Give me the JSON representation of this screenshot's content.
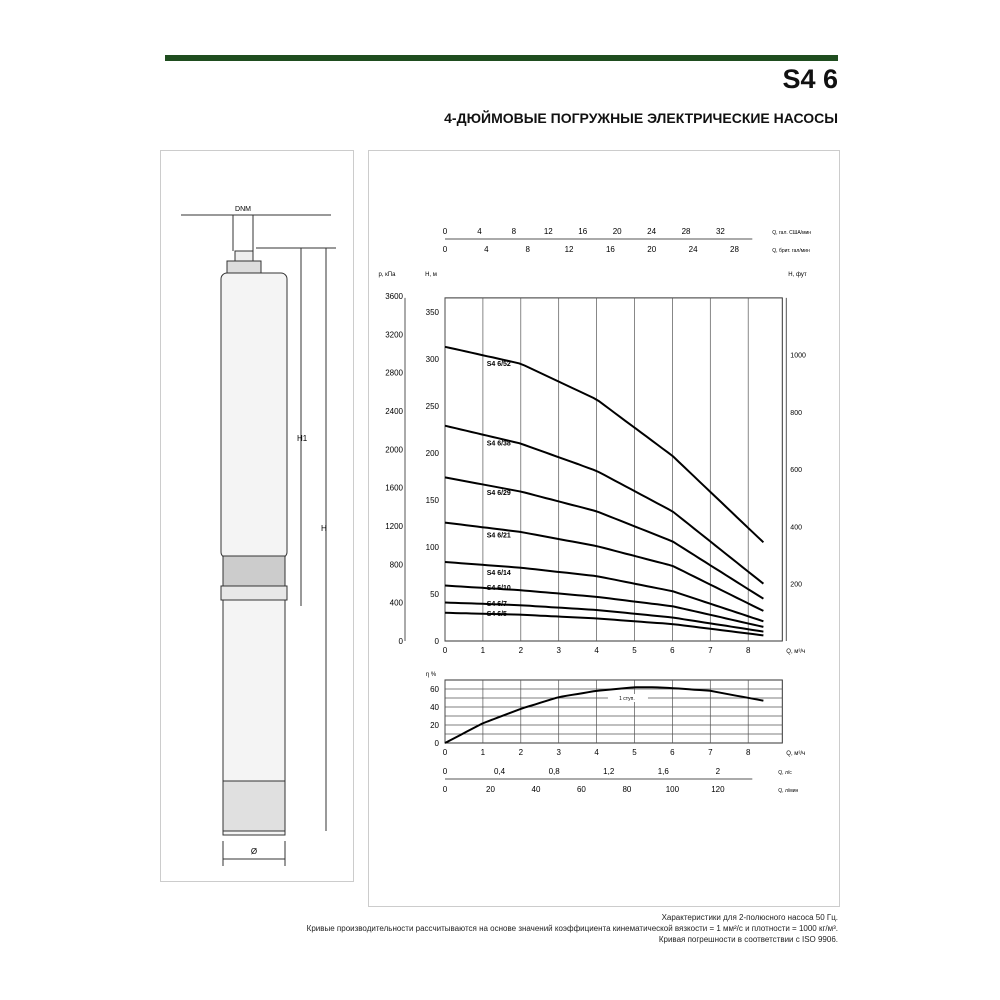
{
  "header": {
    "title": "S4 6",
    "subtitle": "4-ДЮЙМОВЫЕ ПОГРУЖНЫЕ ЭЛЕКТРИЧЕСКИЕ НАСОСЫ",
    "accent_color": "#1f4d1f"
  },
  "drawing": {
    "dnm": "DNM",
    "h1": "H1",
    "h": "H",
    "diameter": "Ø"
  },
  "footer": [
    "Характеристики для 2-полюсного насоса 50 Гц.",
    "Кривые производительности рассчитываются на основе значений коэффициента кинематической вязкости = 1 мм²/с и плотности = 1000 кг/м³.",
    "Кривая погрешности в соответствии с ISO 9906."
  ],
  "chart_data": [
    {
      "type": "line",
      "title": "",
      "xlabel": "Q, м³/ч",
      "ylabel": "H, м",
      "ylabel_kpa": "p, кПа",
      "ylabel_right": "H, фут",
      "top_axis_us": {
        "label": "Q, гал. США/мин",
        "ticks": [
          0,
          4,
          8,
          12,
          16,
          20,
          24,
          28,
          32
        ]
      },
      "top_axis_uk": {
        "label": "Q, брит. гал/мин",
        "ticks": [
          0,
          4,
          8,
          12,
          16,
          20,
          24,
          28
        ]
      },
      "xlim": [
        0,
        8.9
      ],
      "ylim": [
        0,
        365
      ],
      "x_ticks": [
        0,
        1,
        2,
        3,
        4,
        5,
        6,
        7,
        8
      ],
      "y_ticks": [
        0,
        50,
        100,
        150,
        200,
        250,
        300,
        350
      ],
      "kpa_ticks": [
        0,
        400,
        800,
        1200,
        1600,
        2000,
        2400,
        2800,
        3200,
        3600
      ],
      "ft_ticks": [
        200,
        400,
        600,
        800,
        1000
      ],
      "grid": "vertical",
      "series": [
        {
          "name": "S4 6/52",
          "x": [
            0,
            2,
            4,
            6,
            8.4
          ],
          "y": [
            313,
            295,
            257,
            197,
            105
          ]
        },
        {
          "name": "S4 6/38",
          "x": [
            0,
            2,
            4,
            6,
            8.4
          ],
          "y": [
            229,
            210,
            181,
            138,
            61
          ]
        },
        {
          "name": "S4 6/29",
          "x": [
            0,
            2,
            4,
            6,
            8.4
          ],
          "y": [
            174,
            159,
            138,
            106,
            45
          ]
        },
        {
          "name": "S4 6/21",
          "x": [
            0,
            2,
            4,
            6,
            8.4
          ],
          "y": [
            126,
            116,
            101,
            80,
            32
          ]
        },
        {
          "name": "S4 6/14",
          "x": [
            0,
            2,
            4,
            6,
            8.4
          ],
          "y": [
            84,
            78,
            69,
            53,
            21
          ]
        },
        {
          "name": "S4 6/10",
          "x": [
            0,
            2,
            4,
            6,
            8.4
          ],
          "y": [
            59,
            54,
            47,
            37,
            15
          ]
        },
        {
          "name": "S4 6/7",
          "x": [
            0,
            2,
            4,
            6,
            8.4
          ],
          "y": [
            41,
            38,
            33,
            25,
            10
          ]
        },
        {
          "name": "S4 6/5",
          "x": [
            0,
            2,
            4,
            6,
            8.4
          ],
          "y": [
            30,
            28,
            24,
            18,
            6
          ]
        }
      ]
    },
    {
      "type": "line",
      "xlabel": "Q, м³/ч",
      "ylabel": "η %",
      "xlim": [
        0,
        8.9
      ],
      "ylim": [
        0,
        70
      ],
      "y_ticks": [
        0,
        20,
        40,
        60
      ],
      "annotation": "1 ступ.",
      "bottom_axis_ls": {
        "label": "Q, л/с",
        "ticks": [
          "0",
          "0,4",
          "0,8",
          "1,2",
          "1,6",
          "2"
        ]
      },
      "bottom_axis_lmin": {
        "label": "Q, л/мин",
        "ticks": [
          0,
          20,
          40,
          60,
          80,
          100,
          120
        ]
      },
      "series": [
        {
          "x": [
            0,
            1,
            2,
            3,
            4,
            5,
            5.5,
            6,
            7,
            8.4
          ],
          "y": [
            0,
            22,
            38,
            51,
            58,
            62,
            62,
            61,
            58,
            47
          ]
        }
      ]
    }
  ]
}
